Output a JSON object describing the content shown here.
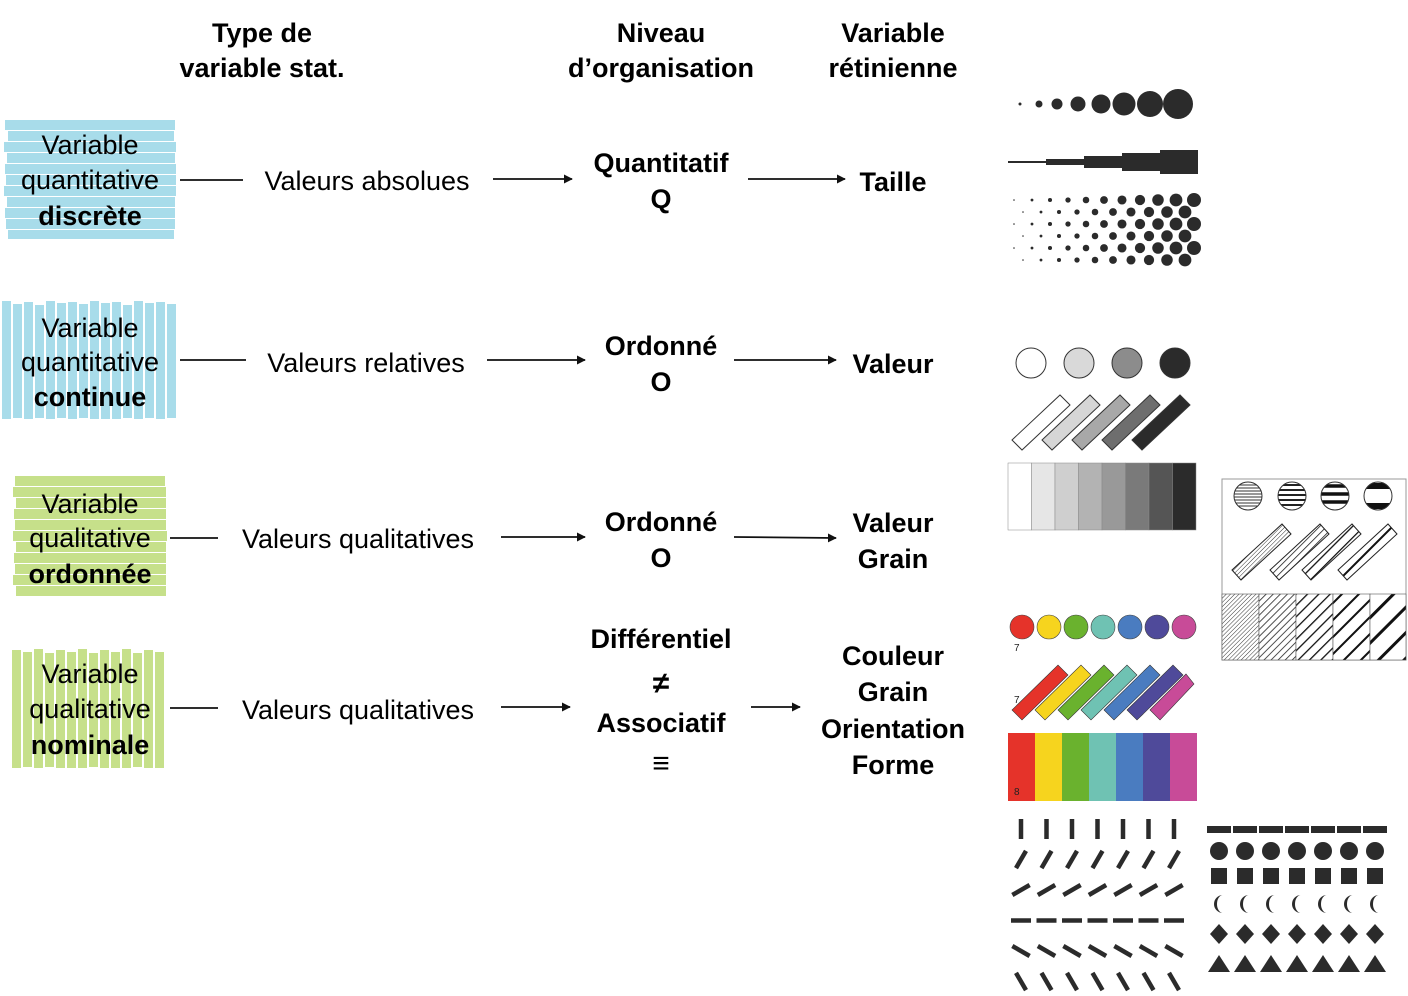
{
  "headers": {
    "type_line1": "Type de",
    "type_line2": "variable stat.",
    "niveau_line1": "Niveau",
    "niveau_line2": "d’organisation",
    "retinienne_line1": "Variable",
    "retinienne_line2": "rétinienne"
  },
  "rows": [
    {
      "type": [
        "Variable",
        "quantitative",
        "discrète"
      ],
      "valeurs": "Valeurs absolues",
      "niveau": [
        "Quantitatif",
        "Q"
      ],
      "retinienne": [
        "Taille"
      ],
      "color": "#a8dcea"
    },
    {
      "type": [
        "Variable",
        "quantitative",
        "continue"
      ],
      "valeurs": "Valeurs relatives",
      "niveau": [
        "Ordonné",
        "O"
      ],
      "retinienne": [
        "Valeur"
      ],
      "color": "#a8dcea"
    },
    {
      "type": [
        "Variable",
        "qualitative",
        "ordonnée"
      ],
      "valeurs": "Valeurs qualitatives",
      "niveau": [
        "Ordonné",
        "O"
      ],
      "retinienne": [
        "Valeur",
        "Grain"
      ],
      "color": "#c6e08a"
    },
    {
      "type": [
        "Variable",
        "qualitative",
        "nominale"
      ],
      "valeurs": "Valeurs qualitatives",
      "niveau": [
        "Différentiel",
        "≠",
        "Associatif",
        "≡"
      ],
      "retinienne": [
        "Couleur",
        "Grain",
        "Orientation",
        "Forme"
      ],
      "color": "#c6e08a"
    }
  ],
  "palette_labels": {
    "circles": "7",
    "bars": "7",
    "swatches": "8"
  },
  "colors": {
    "hue_palette": [
      "#e5332a",
      "#f6d41e",
      "#6ab22e",
      "#6fc2b3",
      "#4a7cc0",
      "#4f4a9a",
      "#c84b98"
    ],
    "value_circles": [
      "#ffffff",
      "#d9d9d9",
      "#8c8c8c",
      "#2b2b2b"
    ],
    "value_bars": [
      "#ffffff",
      "#d6d6d6",
      "#a8a8a8",
      "#6e6e6e",
      "#2b2b2b"
    ],
    "value_scale": [
      "#ffffff",
      "#e6e6e6",
      "#cfcfcf",
      "#b3b3b3",
      "#999999",
      "#7a7a7a",
      "#555555",
      "#2b2b2b"
    ],
    "ink": "#2b2b2b"
  },
  "icons": [
    "size-dots-icon",
    "size-lines-icon",
    "size-grid-icon",
    "value-circles-icon",
    "value-bars-icon",
    "value-scale-icon",
    "grain-circles-icon",
    "grain-bars-icon",
    "grain-scale-icon",
    "color-circles-icon",
    "color-bars-icon",
    "color-scale-icon",
    "orientation-icon",
    "shape-icon"
  ]
}
